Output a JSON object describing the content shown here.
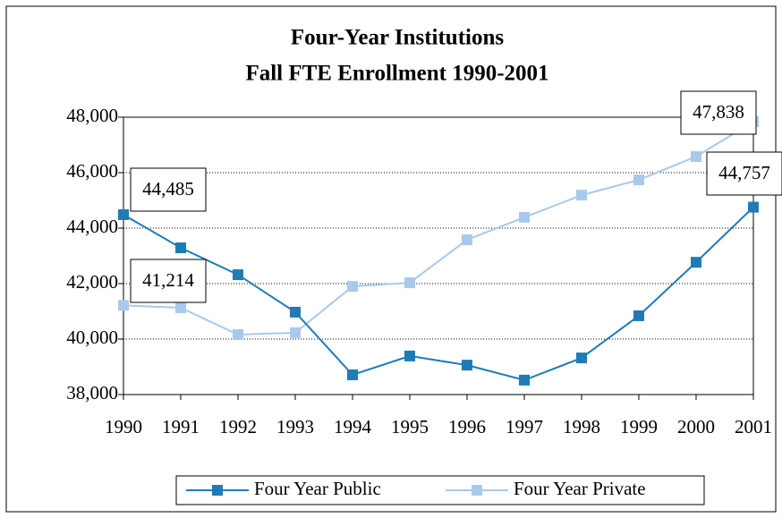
{
  "chart_data": {
    "type": "line",
    "title": "Four-Year Institutions",
    "subtitle": "Fall FTE Enrollment 1990-2001",
    "x": [
      1990,
      1991,
      1992,
      1993,
      1994,
      1995,
      1996,
      1997,
      1998,
      1999,
      2000,
      2001
    ],
    "xlim": [
      1990,
      2001
    ],
    "xticks": [
      1990,
      1991,
      1992,
      1993,
      1994,
      1995,
      1996,
      1997,
      1998,
      1999,
      2000,
      2001
    ],
    "ylim": [
      38000,
      48000
    ],
    "yticks": [
      {
        "value": 38000,
        "label": "38,000"
      },
      {
        "value": 40000,
        "label": "40,000"
      },
      {
        "value": 42000,
        "label": "42,000"
      },
      {
        "value": 44000,
        "label": "44,000"
      },
      {
        "value": 46000,
        "label": "46,000"
      },
      {
        "value": 48000,
        "label": "48,000"
      }
    ],
    "grid": true,
    "legend": "bottom",
    "series": [
      {
        "name": "Four Year Public",
        "color": "#1f7bb6",
        "values": [
          44485,
          43290,
          42320,
          40970,
          38710,
          39390,
          39060,
          38520,
          39320,
          40840,
          42770,
          44757
        ],
        "value_labels": [
          "44,485",
          null,
          null,
          null,
          null,
          null,
          null,
          null,
          null,
          null,
          null,
          "44,757"
        ]
      },
      {
        "name": "Four Year Private",
        "color": "#a9c9ec",
        "values": [
          41214,
          41130,
          40160,
          40230,
          41900,
          42030,
          43580,
          44390,
          45190,
          45740,
          46580,
          47838
        ],
        "value_labels": [
          "41,214",
          null,
          null,
          null,
          null,
          null,
          null,
          null,
          null,
          null,
          null,
          "47,838"
        ]
      }
    ]
  }
}
